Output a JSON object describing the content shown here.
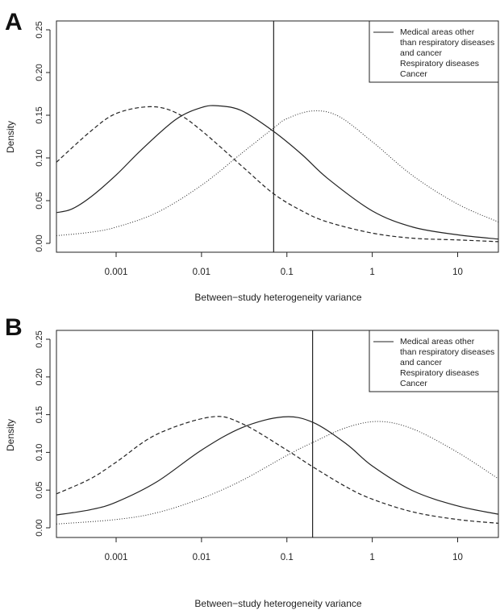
{
  "panels": [
    {
      "panel_label": "A",
      "legend": [
        "Medical areas other",
        "than respiratory diseases",
        "and cancer",
        "Respiratory diseases",
        "Cancer"
      ]
    },
    {
      "panel_label": "B",
      "legend": [
        "Medical areas other",
        "than respiratory diseases",
        "and cancer",
        "Respiratory diseases",
        "Cancer"
      ]
    }
  ],
  "chart_data": [
    {
      "type": "line",
      "xlabel": "Between−study heterogeneity variance",
      "ylabel": "Density",
      "x_scale": "log10",
      "xlim": [
        0.0002,
        30
      ],
      "ylim": [
        0,
        0.25
      ],
      "xticks": [
        0.001,
        0.01,
        0.1,
        1,
        10
      ],
      "xtick_labels": [
        "0.001",
        "0.01",
        "0.1",
        "1",
        "10"
      ],
      "yticks": [
        0,
        0.05,
        0.1,
        0.15,
        0.2,
        0.25
      ],
      "ytick_labels": [
        "0.00",
        "0.05",
        "0.10",
        "0.15",
        "0.20",
        "0.25"
      ],
      "grid": false,
      "legend_position": "top-right",
      "vertical_line_x": 0.07,
      "series": [
        {
          "name": "Medical areas other than respiratory diseases and cancer",
          "line_style": "solid",
          "x": [
            0.0002,
            0.0003,
            0.0005,
            0.001,
            0.002,
            0.005,
            0.01,
            0.016,
            0.03,
            0.07,
            0.15,
            0.3,
            1,
            3,
            10,
            30
          ],
          "y": [
            0.036,
            0.04,
            0.054,
            0.08,
            0.11,
            0.145,
            0.159,
            0.161,
            0.155,
            0.131,
            0.104,
            0.076,
            0.038,
            0.019,
            0.01,
            0.005
          ]
        },
        {
          "name": "Respiratory diseases",
          "line_style": "dashed",
          "x": [
            0.0002,
            0.0005,
            0.001,
            0.0025,
            0.005,
            0.01,
            0.03,
            0.07,
            0.15,
            0.3,
            1,
            3,
            10,
            30
          ],
          "y": [
            0.095,
            0.131,
            0.152,
            0.16,
            0.153,
            0.132,
            0.09,
            0.058,
            0.038,
            0.025,
            0.012,
            0.006,
            0.004,
            0.002
          ]
        },
        {
          "name": "Cancer",
          "line_style": "dotted",
          "x": [
            0.0002,
            0.0005,
            0.001,
            0.003,
            0.01,
            0.03,
            0.07,
            0.1,
            0.2,
            0.4,
            1,
            3,
            10,
            30
          ],
          "y": [
            0.009,
            0.013,
            0.019,
            0.036,
            0.068,
            0.106,
            0.135,
            0.146,
            0.155,
            0.149,
            0.119,
            0.079,
            0.046,
            0.025
          ]
        }
      ]
    },
    {
      "type": "line",
      "xlabel": "Between−study heterogeneity variance",
      "ylabel": "Density",
      "x_scale": "log10",
      "xlim": [
        0.0002,
        30
      ],
      "ylim": [
        0,
        0.25
      ],
      "xticks": [
        0.001,
        0.01,
        0.1,
        1,
        10
      ],
      "xtick_labels": [
        "0.001",
        "0.01",
        "0.1",
        "1",
        "10"
      ],
      "yticks": [
        0,
        0.05,
        0.1,
        0.15,
        0.2,
        0.25
      ],
      "ytick_labels": [
        "0.00",
        "0.05",
        "0.10",
        "0.15",
        "0.20",
        "0.25"
      ],
      "grid": false,
      "legend_position": "top-right",
      "vertical_line_x": 0.2,
      "series": [
        {
          "name": "Medical areas other than respiratory diseases and cancer",
          "line_style": "solid",
          "x": [
            0.0002,
            0.0005,
            0.001,
            0.003,
            0.01,
            0.03,
            0.09,
            0.2,
            0.5,
            1,
            3,
            10,
            30
          ],
          "y": [
            0.017,
            0.024,
            0.034,
            0.061,
            0.103,
            0.133,
            0.147,
            0.14,
            0.111,
            0.082,
            0.049,
            0.029,
            0.018
          ]
        },
        {
          "name": "Respiratory diseases",
          "line_style": "dashed",
          "x": [
            0.0002,
            0.0005,
            0.001,
            0.003,
            0.013,
            0.03,
            0.1,
            0.2,
            0.5,
            1,
            3,
            10,
            30
          ],
          "y": [
            0.045,
            0.065,
            0.087,
            0.124,
            0.147,
            0.138,
            0.103,
            0.081,
            0.054,
            0.038,
            0.021,
            0.011,
            0.006
          ]
        },
        {
          "name": "Cancer",
          "line_style": "dotted",
          "x": [
            0.0002,
            0.001,
            0.003,
            0.01,
            0.03,
            0.1,
            0.2,
            0.5,
            1.2,
            3,
            10,
            30
          ],
          "y": [
            0.005,
            0.011,
            0.02,
            0.039,
            0.063,
            0.096,
            0.113,
            0.133,
            0.141,
            0.131,
            0.1,
            0.065
          ]
        }
      ]
    }
  ]
}
